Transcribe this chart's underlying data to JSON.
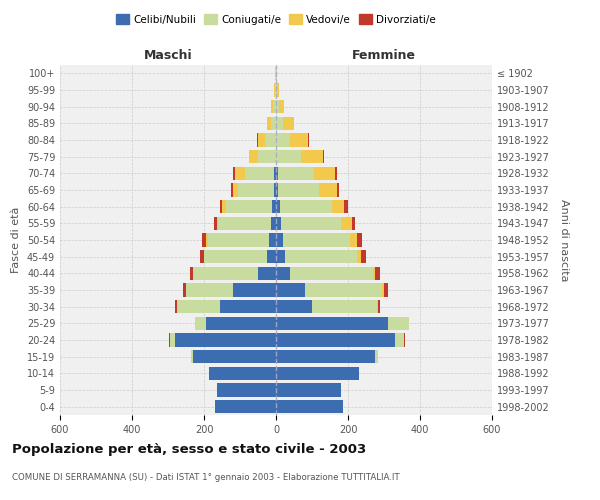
{
  "age_groups": [
    "0-4",
    "5-9",
    "10-14",
    "15-19",
    "20-24",
    "25-29",
    "30-34",
    "35-39",
    "40-44",
    "45-49",
    "50-54",
    "55-59",
    "60-64",
    "65-69",
    "70-74",
    "75-79",
    "80-84",
    "85-89",
    "90-94",
    "95-99",
    "100+"
  ],
  "birth_years": [
    "1998-2002",
    "1993-1997",
    "1988-1992",
    "1983-1987",
    "1978-1982",
    "1973-1977",
    "1968-1972",
    "1963-1967",
    "1958-1962",
    "1953-1957",
    "1948-1952",
    "1943-1947",
    "1938-1942",
    "1933-1937",
    "1928-1932",
    "1923-1927",
    "1918-1922",
    "1913-1917",
    "1908-1912",
    "1903-1907",
    "≤ 1902"
  ],
  "males": {
    "celibe": [
      170,
      165,
      185,
      230,
      280,
      195,
      155,
      120,
      50,
      25,
      20,
      15,
      10,
      5,
      5,
      0,
      0,
      0,
      0,
      0,
      0
    ],
    "coniugato": [
      0,
      0,
      0,
      5,
      15,
      30,
      120,
      130,
      180,
      175,
      170,
      145,
      130,
      100,
      80,
      50,
      30,
      15,
      8,
      3,
      2
    ],
    "vedovo": [
      0,
      0,
      0,
      0,
      0,
      0,
      0,
      0,
      0,
      0,
      5,
      5,
      10,
      15,
      30,
      25,
      20,
      10,
      5,
      2,
      0
    ],
    "divorziato": [
      0,
      0,
      0,
      0,
      2,
      0,
      5,
      8,
      10,
      10,
      10,
      8,
      5,
      5,
      5,
      0,
      2,
      0,
      0,
      0,
      0
    ]
  },
  "females": {
    "nubile": [
      185,
      180,
      230,
      275,
      330,
      310,
      100,
      80,
      40,
      25,
      20,
      15,
      10,
      5,
      5,
      0,
      0,
      0,
      0,
      0,
      0
    ],
    "coniugata": [
      0,
      0,
      0,
      8,
      25,
      60,
      180,
      215,
      230,
      200,
      185,
      165,
      145,
      115,
      100,
      70,
      40,
      20,
      8,
      3,
      2
    ],
    "vedova": [
      0,
      0,
      0,
      0,
      0,
      0,
      2,
      5,
      5,
      10,
      20,
      30,
      35,
      50,
      60,
      60,
      50,
      30,
      15,
      5,
      2
    ],
    "divorziata": [
      0,
      0,
      0,
      0,
      2,
      0,
      8,
      10,
      15,
      15,
      15,
      10,
      10,
      5,
      5,
      2,
      2,
      0,
      0,
      0,
      0
    ]
  },
  "colors": {
    "celibe": "#3B6DB0",
    "coniugato": "#C8DCA0",
    "vedovo": "#F2C94C",
    "divorziato": "#C0392B"
  },
  "xlim": 600,
  "title": "Popolazione per età, sesso e stato civile - 2003",
  "subtitle": "COMUNE DI SERRAMANNA (SU) - Dati ISTAT 1° gennaio 2003 - Elaborazione TUTTITALIA.IT",
  "label_maschi": "Maschi",
  "label_femmine": "Femmine",
  "ylabel_left": "Fasce di età",
  "ylabel_right": "Anni di nascita",
  "background_color": "#ffffff",
  "plot_bg_color": "#f0f0f0",
  "grid_color": "#cccccc"
}
